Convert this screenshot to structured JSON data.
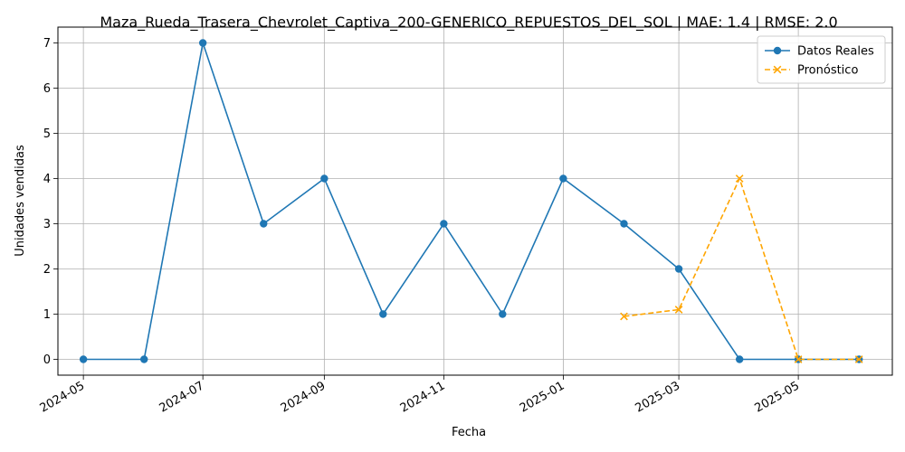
{
  "chart_data": {
    "type": "line",
    "title": "Maza_Rueda_Trasera_Chevrolet_Captiva_200-GENERICO_REPUESTOS_DEL_SOL | MAE: 1.4 | RMSE: 2.0",
    "xlabel": "Fecha",
    "ylabel": "Unidades vendidas",
    "ylim": [
      -0.35,
      7.35
    ],
    "xlim": [
      "2024-04-18",
      "2025-06-18"
    ],
    "grid": true,
    "legend_position": "top-right",
    "x_ticks": [
      "2024-05",
      "2024-07",
      "2024-09",
      "2024-11",
      "2025-01",
      "2025-03",
      "2025-05"
    ],
    "y_ticks": [
      0,
      1,
      2,
      3,
      4,
      5,
      6,
      7
    ],
    "series": [
      {
        "name": "Datos Reales",
        "color": "#1f77b4",
        "style": "solid",
        "marker": "circle",
        "x": [
          "2024-05-01",
          "2024-06-01",
          "2024-07-01",
          "2024-08-01",
          "2024-09-01",
          "2024-10-01",
          "2024-11-01",
          "2024-12-01",
          "2025-01-01",
          "2025-02-01",
          "2025-03-01",
          "2025-04-01",
          "2025-05-01",
          "2025-06-01"
        ],
        "values": [
          0,
          0,
          7,
          3,
          4,
          1,
          3,
          1,
          4,
          3,
          2,
          0,
          0,
          0
        ]
      },
      {
        "name": "Pronóstico",
        "color": "#ffa500",
        "style": "dashed",
        "marker": "x",
        "x": [
          "2025-02-01",
          "2025-03-01",
          "2025-04-01",
          "2025-05-01",
          "2025-06-01"
        ],
        "values": [
          0.95,
          1.1,
          4.0,
          0.0,
          0.0
        ]
      }
    ]
  }
}
